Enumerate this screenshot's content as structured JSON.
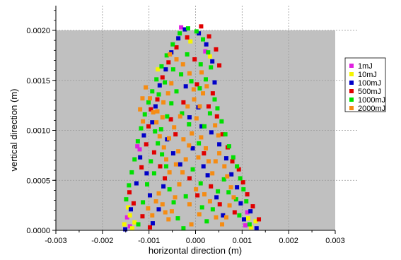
{
  "chart_data": {
    "type": "scatter",
    "title": "",
    "xlabel": "horizontal direction (m)",
    "ylabel": "vertical direction (m)",
    "xlim": [
      -0.003,
      0.003
    ],
    "ylim": [
      0,
      0.002
    ],
    "x_ticks": [
      "-0.003",
      "-0.002",
      "-0.001",
      "0.000",
      "0.001",
      "0.002",
      "0.003"
    ],
    "y_ticks": [
      "0.0000",
      "0.0005",
      "0.0010",
      "0.0015",
      "0.0020"
    ],
    "background": "#c0c0c0",
    "grid": "dotted",
    "legend_position": "right",
    "series": [
      {
        "name": "1mJ",
        "color": "#e020e0",
        "points": [
          [
            -0.00147,
            0.00013
          ],
          [
            -0.00141,
            4e-05
          ],
          [
            -0.00125,
            0.00084
          ],
          [
            -0.0012,
            0.00081
          ],
          [
            0.00107,
            5e-05
          ],
          [
            0.00111,
            0.00018
          ],
          [
            -0.00031,
            0.00203
          ],
          [
            0.00021,
            0.00179
          ]
        ]
      },
      {
        "name": "10mJ",
        "color": "#f5f500",
        "points": [
          [
            -0.00153,
            6e-05
          ],
          [
            -0.00136,
            2e-05
          ],
          [
            -0.00131,
            8e-05
          ],
          [
            -0.00141,
            0.00015
          ],
          [
            -0.00145,
            0.00023
          ],
          [
            0.00113,
            0.00012
          ],
          [
            0.00119,
            3e-05
          ],
          [
            0.00129,
            9e-05
          ],
          [
            -0.00081,
            0.00161
          ],
          [
            -0.00011,
            0.00189
          ],
          [
            0.00031,
            0.00174
          ]
        ]
      },
      {
        "name": "100mJ",
        "color": "#0000c8",
        "points": [
          [
            -0.00151,
            1e-05
          ],
          [
            -0.00139,
            0.00021
          ],
          [
            -0.00127,
            0.00047
          ],
          [
            -0.00119,
            0.00073
          ],
          [
            -0.00105,
            0.00057
          ],
          [
            -0.00098,
            0.00035
          ],
          [
            -0.00111,
            0.00095
          ],
          [
            -0.00093,
            0.00108
          ],
          [
            -0.00086,
            0.00124
          ],
          [
            -0.00077,
            0.00145
          ],
          [
            -0.00064,
            0.00161
          ],
          [
            -0.00052,
            0.00178
          ],
          [
            -0.00037,
            0.00192
          ],
          [
            -0.00023,
            0.00201
          ],
          [
            7e-05,
            0.00197
          ],
          [
            0.00023,
            0.00186
          ],
          [
            0.00036,
            0.00169
          ],
          [
            0.00041,
            0.00148
          ],
          [
            -0.00021,
            0.00144
          ],
          [
            -0.00013,
            0.00113
          ],
          [
            0.00013,
            0.00104
          ],
          [
            0.00034,
            0.00098
          ],
          [
            0.00051,
            0.00086
          ],
          [
            0.00066,
            0.00072
          ],
          [
            0.00077,
            0.00056
          ],
          [
            0.00089,
            0.00043
          ],
          [
            0.00097,
            0.00027
          ],
          [
            0.00104,
            0.00011
          ],
          [
            0.00118,
            0.00019
          ],
          [
            0.00131,
            2e-05
          ],
          [
            -0.00061,
            0.00091
          ],
          [
            -0.00048,
            0.00077
          ],
          [
            -0.00033,
            0.00066
          ],
          [
            0.00017,
            0.00064
          ],
          [
            0.00045,
            0.00033
          ],
          [
            0.00059,
            0.00015
          ],
          [
            -0.00069,
            0.00044
          ],
          [
            -0.00079,
            0.00021
          ],
          [
            -0.00092,
            7e-05
          ],
          [
            6e-05,
            0.00123
          ],
          [
            -6e-05,
            0.00082
          ],
          [
            0.00026,
            0.00055
          ]
        ]
      },
      {
        "name": "500mJ",
        "color": "#e00000",
        "points": [
          [
            -0.00142,
            0.00038
          ],
          [
            -0.00133,
            0.00027
          ],
          [
            -0.00116,
            0.00063
          ],
          [
            -0.00106,
            0.00086
          ],
          [
            -0.00101,
            0.00104
          ],
          [
            -0.00096,
            0.00121
          ],
          [
            -0.00082,
            0.00131
          ],
          [
            -0.00071,
            0.00153
          ],
          [
            -0.00058,
            0.00168
          ],
          [
            -0.00041,
            0.00183
          ],
          [
            -0.00018,
            0.00193
          ],
          [
            0.00012,
            0.00204
          ],
          [
            0.00029,
            0.00194
          ],
          [
            0.00044,
            0.00181
          ],
          [
            0.00051,
            0.00165
          ],
          [
            0.00037,
            0.00137
          ],
          [
            0.00028,
            0.00124
          ],
          [
            -0.00026,
            0.00128
          ],
          [
            0.00046,
            0.00114
          ],
          [
            0.00058,
            0.00096
          ],
          [
            0.00069,
            0.00083
          ],
          [
            0.00079,
            0.00069
          ],
          [
            0.00093,
            0.00061
          ],
          [
            0.00102,
            0.00048
          ],
          [
            0.00111,
            0.00036
          ],
          [
            0.00123,
            0.00024
          ],
          [
            0.00136,
            0.00011
          ],
          [
            -0.00089,
            0.00078
          ],
          [
            -0.00076,
            0.00064
          ],
          [
            -0.00066,
            0.00052
          ],
          [
            -0.00053,
            0.00111
          ],
          [
            -0.00043,
            0.00096
          ],
          [
            3e-05,
            0.00146
          ],
          [
            0.00018,
            0.00077
          ],
          [
            0.00033,
            0.00044
          ],
          [
            0.00052,
            0.00026
          ],
          [
            -0.00114,
            0.00014
          ],
          [
            -0.00098,
            3e-05
          ],
          [
            0.00084,
            0.00018
          ],
          [
            -2e-05,
            0.00171
          ],
          [
            4e-05,
            0.00035
          ],
          [
            -0.00013,
            0.00052
          ]
        ]
      },
      {
        "name": "1000mJ",
        "color": "#00e000",
        "points": [
          [
            -0.00149,
            0.00031
          ],
          [
            -0.00143,
            0.00045
          ],
          [
            -0.00137,
            0.00058
          ],
          [
            -0.00131,
            0.00071
          ],
          [
            -0.00124,
            0.00089
          ],
          [
            -0.00117,
            0.00102
          ],
          [
            -0.00109,
            0.00116
          ],
          [
            -0.00101,
            0.00128
          ],
          [
            -0.00093,
            0.00139
          ],
          [
            -0.00084,
            0.00151
          ],
          [
            -0.00073,
            0.00164
          ],
          [
            -0.00062,
            0.00175
          ],
          [
            -0.00049,
            0.00186
          ],
          [
            -0.00034,
            0.00197
          ],
          [
            -0.00016,
            0.00202
          ],
          [
            2e-05,
            0.00199
          ],
          [
            0.00016,
            0.00191
          ],
          [
            0.00027,
            0.00178
          ],
          [
            0.00033,
            0.00163
          ],
          [
            0.00022,
            0.00151
          ],
          [
            9e-05,
            0.00142
          ],
          [
            -9e-05,
            0.00149
          ],
          [
            -0.00031,
            0.00156
          ],
          [
            -0.00048,
            0.00161
          ],
          [
            -0.00066,
            0.00148
          ],
          [
            -0.00079,
            0.00136
          ],
          [
            0.00041,
            0.00131
          ],
          [
            0.00047,
            0.00122
          ],
          [
            0.00056,
            0.00109
          ],
          [
            0.00064,
            0.00096
          ],
          [
            0.00072,
            0.00084
          ],
          [
            0.00081,
            0.00073
          ],
          [
            0.00089,
            0.00064
          ],
          [
            0.00096,
            0.00052
          ],
          [
            0.00103,
            0.00041
          ],
          [
            0.00109,
            0.00029
          ],
          [
            0.00116,
            6e-05
          ],
          [
            -0.00087,
            0.00099
          ],
          [
            -0.00081,
            0.00087
          ],
          [
            -0.00072,
            0.00076
          ],
          [
            -0.00063,
            0.00064
          ],
          [
            -0.00056,
            0.00041
          ],
          [
            -0.00047,
            0.00028
          ],
          [
            -0.00038,
            0.00012
          ],
          [
            -0.00026,
            2e-05
          ],
          [
            0.00024,
            9e-05
          ],
          [
            0.00037,
            0.00021
          ],
          [
            0.00048,
            0.00039
          ],
          [
            0.00061,
            0.00051
          ],
          [
            0.00071,
            0.00038
          ],
          [
            0.00087,
            0.00031
          ],
          [
            0.00094,
            0.00015
          ],
          [
            -0.00123,
            6e-05
          ],
          [
            -0.00113,
            0.00028
          ],
          [
            -0.00104,
            0.00046
          ],
          [
            -0.00096,
            0.00069
          ],
          [
            -0.00089,
            0.00057
          ],
          [
            -0.00074,
            0.00101
          ],
          [
            -0.00061,
            0.00114
          ],
          [
            -0.00052,
            0.00127
          ],
          [
            -0.00041,
            0.00139
          ],
          [
            -0.00029,
            0.00117
          ],
          [
            -0.00014,
            0.00106
          ],
          [
            7e-05,
            0.00087
          ],
          [
            0.00019,
            0.00104
          ],
          [
            0.00031,
            0.00117
          ],
          [
            -6e-05,
            0.00061
          ],
          [
            0.00011,
            0.00047
          ],
          [
            -0.00021,
            0.00034
          ],
          [
            0.00014,
            0.00023
          ],
          [
            -0.00018,
            0.00176
          ],
          [
            0.00011,
            0.00166
          ]
        ]
      },
      {
        "name": "2000mJ",
        "color": "#f58c14",
        "points": [
          [
            -0.00102,
            0.00022
          ],
          [
            -0.00093,
            0.00015
          ],
          [
            -0.00085,
            0.00029
          ],
          [
            -0.00079,
            0.00037
          ],
          [
            -0.00071,
            0.00026
          ],
          [
            -0.00065,
            0.00018
          ],
          [
            -0.00058,
            0.00011
          ],
          [
            -0.00051,
            0.00019
          ],
          [
            -0.00044,
            0.00033
          ],
          [
            -0.00035,
            0.00046
          ],
          [
            -0.00028,
            0.00058
          ],
          [
            -0.00021,
            0.00071
          ],
          [
            -0.00014,
            0.00085
          ],
          [
            -8e-05,
            0.00097
          ],
          [
            2e-05,
            0.00112
          ],
          [
            9e-05,
            0.00124
          ],
          [
            0.00016,
            0.00137
          ],
          [
            -3e-05,
            0.00131
          ],
          [
            -0.00017,
            0.00124
          ],
          [
            -0.00033,
            0.00114
          ],
          [
            -0.00046,
            0.00103
          ],
          [
            -0.00057,
            0.00092
          ],
          [
            -0.00068,
            0.00083
          ],
          [
            -0.00077,
            0.00094
          ],
          [
            -0.00084,
            0.00108
          ],
          [
            -0.00091,
            0.00118
          ],
          [
            -0.00098,
            0.00132
          ],
          [
            -0.00107,
            0.00143
          ],
          [
            -0.00114,
            0.00132
          ],
          [
            -0.00119,
            0.00121
          ],
          [
            -0.00113,
            0.00109
          ],
          [
            -0.00063,
            0.00071
          ],
          [
            -0.00056,
            0.00058
          ],
          [
            -0.00042,
            0.00066
          ],
          [
            -0.00037,
            0.00079
          ],
          [
            -0.00026,
            0.00091
          ],
          [
            0.00012,
            0.00093
          ],
          [
            0.00022,
            0.00082
          ],
          [
            0.00028,
            0.00069
          ],
          [
            0.00036,
            0.00057
          ],
          [
            0.00043,
            0.00069
          ],
          [
            0.00051,
            0.00077
          ],
          [
            0.00062,
            0.00064
          ],
          [
            0.00068,
            0.00054
          ],
          [
            0.00076,
            0.00043
          ],
          [
            0.00082,
            0.00033
          ],
          [
            0.00073,
            0.00025
          ],
          [
            0.00066,
            0.00013
          ],
          [
            0.00057,
            6e-05
          ],
          [
            0.00044,
            0.00013
          ],
          [
            0.00031,
            0.00029
          ],
          [
            0.00019,
            0.00036
          ],
          [
            8e-05,
            0.00016
          ],
          [
            -9e-05,
            6e-05
          ],
          [
            -0.00013,
            0.00026
          ],
          [
            1e-05,
            0.00041
          ],
          [
            6e-05,
            0.00073
          ],
          [
            -4e-05,
            0.00141
          ],
          [
            -0.00013,
            0.00157
          ],
          [
            -0.00027,
            0.00166
          ],
          [
            -0.00041,
            0.00171
          ],
          [
            -0.00055,
            0.00176
          ],
          [
            0.00013,
            0.00158
          ],
          [
            0.00024,
            0.00144
          ],
          [
            -0.00052,
            0.00147
          ],
          [
            -0.00069,
            0.00128
          ],
          [
            -0.00059,
            0.00137
          ],
          [
            0.00049,
            0.00095
          ],
          [
            0.00042,
            0.00105
          ],
          [
            -0.00071,
            0.00113
          ],
          [
            -0.00082,
            0.00119
          ]
        ]
      }
    ]
  }
}
